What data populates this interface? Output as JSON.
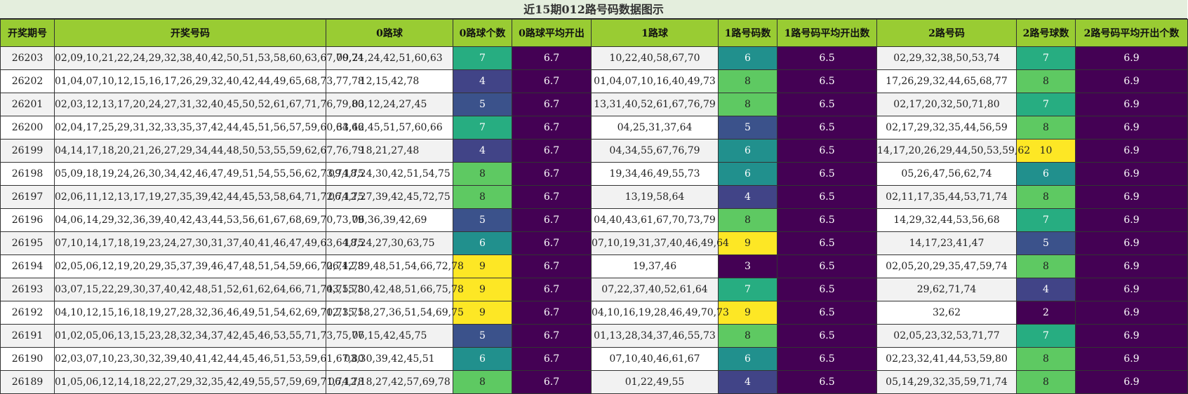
{
  "title": "近15期012路号码数据图示",
  "headers": [
    "开奖期号",
    "开奖号码",
    "0路球",
    "0路球个数",
    "0路球平均开出",
    "1路球",
    "1路号码数",
    "1路号码平均开出数",
    "2路号码",
    "2路号球数",
    "2路号码平均开出个数"
  ],
  "rows": [
    {
      "period": "26203",
      "numbers": "02,09,10,21,22,24,29,32,38,40,42,50,51,53,58,60,63,67,70,74",
      "r0": "09,21,24,42,51,60,63",
      "c0": "7",
      "a0": "6.7",
      "r1": "10,22,40,58,67,70",
      "c1": "6",
      "a1": "6.5",
      "r2": "02,29,32,38,50,53,74",
      "c2": "7",
      "a2": "6.9"
    },
    {
      "period": "26202",
      "numbers": "01,04,07,10,12,15,16,17,26,29,32,40,42,44,49,65,68,73,77,78",
      "r0": "12,15,42,78",
      "c0": "4",
      "a0": "6.7",
      "r1": "01,04,07,10,16,40,49,73",
      "c1": "8",
      "a1": "6.5",
      "r2": "17,26,29,32,44,65,68,77",
      "c2": "8",
      "a2": "6.9"
    },
    {
      "period": "26201",
      "numbers": "02,03,12,13,17,20,24,27,31,32,40,45,50,52,61,67,71,76,79,80",
      "r0": "03,12,24,27,45",
      "c0": "5",
      "a0": "6.7",
      "r1": "13,31,40,52,61,67,76,79",
      "c1": "8",
      "a1": "6.5",
      "r2": "02,17,20,32,50,71,80",
      "c2": "7",
      "a2": "6.9"
    },
    {
      "period": "26200",
      "numbers": "02,04,17,25,29,31,32,33,35,37,42,44,45,51,56,57,59,60,64,66",
      "r0": "33,42,45,51,57,60,66",
      "c0": "7",
      "a0": "6.7",
      "r1": "04,25,31,37,64",
      "c1": "5",
      "a1": "6.5",
      "r2": "02,17,29,32,35,44,56,59",
      "c2": "8",
      "a2": "6.9"
    },
    {
      "period": "26199",
      "numbers": "04,14,17,18,20,21,26,27,29,34,44,48,50,53,55,59,62,67,76,79",
      "r0": "18,21,27,48",
      "c0": "4",
      "a0": "6.7",
      "r1": "04,34,55,67,76,79",
      "c1": "6",
      "a1": "6.5",
      "r2": "14,17,20,26,29,44,50,53,59,62",
      "c2": "10",
      "a2": "6.9"
    },
    {
      "period": "26198",
      "numbers": "05,09,18,19,24,26,30,34,42,46,47,49,51,54,55,56,62,73,74,75",
      "r0": "09,18,24,30,42,51,54,75",
      "c0": "8",
      "a0": "6.7",
      "r1": "19,34,46,49,55,73",
      "c1": "6",
      "a1": "6.5",
      "r2": "05,26,47,56,62,74",
      "c2": "6",
      "a2": "6.9"
    },
    {
      "period": "26197",
      "numbers": "02,06,11,12,13,17,19,27,35,39,42,44,45,53,58,64,71,72,74,75",
      "r0": "06,12,27,39,42,45,72,75",
      "c0": "8",
      "a0": "6.7",
      "r1": "13,19,58,64",
      "c1": "4",
      "a1": "6.5",
      "r2": "02,11,17,35,44,53,71,74",
      "c2": "8",
      "a2": "6.9"
    },
    {
      "period": "26196",
      "numbers": "04,06,14,29,32,36,39,40,42,43,44,53,56,61,67,68,69,70,73,79",
      "r0": "06,36,39,42,69",
      "c0": "5",
      "a0": "6.7",
      "r1": "04,40,43,61,67,70,73,79",
      "c1": "8",
      "a1": "6.5",
      "r2": "14,29,32,44,53,56,68",
      "c2": "7",
      "a2": "6.9"
    },
    {
      "period": "26195",
      "numbers": "07,10,14,17,18,19,23,24,27,30,31,37,40,41,46,47,49,63,64,75",
      "r0": "18,24,27,30,63,75",
      "c0": "6",
      "a0": "6.7",
      "r1": "07,10,19,31,37,40,46,49,64",
      "c1": "9",
      "a1": "6.5",
      "r2": "14,17,23,41,47",
      "c2": "5",
      "a2": "6.9"
    },
    {
      "period": "26194",
      "numbers": "02,05,06,12,19,20,29,35,37,39,46,47,48,51,54,59,66,72,74,78",
      "r0": "06,12,39,48,51,54,66,72,78",
      "c0": "9",
      "a0": "6.7",
      "r1": "19,37,46",
      "c1": "3",
      "a1": "6.5",
      "r2": "02,05,20,29,35,47,59,74",
      "c2": "8",
      "a2": "6.9"
    },
    {
      "period": "26193",
      "numbers": "03,07,15,22,29,30,37,40,42,48,51,52,61,62,64,66,71,74,75,78",
      "r0": "03,15,30,42,48,51,66,75,78",
      "c0": "9",
      "a0": "6.7",
      "r1": "07,22,37,40,52,61,64",
      "c1": "7",
      "a1": "6.5",
      "r2": "29,62,71,74",
      "c2": "4",
      "a2": "6.9"
    },
    {
      "period": "26192",
      "numbers": "04,10,12,15,16,18,19,27,28,32,36,46,49,51,54,62,69,70,73,75",
      "r0": "12,15,18,27,36,51,54,69,75",
      "c0": "9",
      "a0": "6.7",
      "r1": "04,10,16,19,28,46,49,70,73",
      "c1": "9",
      "a1": "6.5",
      "r2": "32,62",
      "c2": "2",
      "a2": "6.9"
    },
    {
      "period": "26191",
      "numbers": "01,02,05,06,13,15,23,28,32,34,37,42,45,46,53,55,71,73,75,77",
      "r0": "06,15,42,45,75",
      "c0": "5",
      "a0": "6.7",
      "r1": "01,13,28,34,37,46,55,73",
      "c1": "8",
      "a1": "6.5",
      "r2": "02,05,23,32,53,71,77",
      "c2": "7",
      "a2": "6.9"
    },
    {
      "period": "26190",
      "numbers": "02,03,07,10,23,30,32,39,40,41,42,44,45,46,51,53,59,61,67,80",
      "r0": "03,30,39,42,45,51",
      "c0": "6",
      "a0": "6.7",
      "r1": "07,10,40,46,61,67",
      "c1": "6",
      "a1": "6.5",
      "r2": "02,23,32,41,44,53,59,80",
      "c2": "8",
      "a2": "6.9"
    },
    {
      "period": "26189",
      "numbers": "01,05,06,12,14,18,22,27,29,32,35,42,49,55,57,59,69,71,74,78",
      "r0": "06,12,18,27,42,57,69,78",
      "c0": "8",
      "a0": "6.7",
      "r1": "01,22,49,55",
      "c1": "4",
      "a1": "6.5",
      "r2": "05,14,29,32,35,59,71,74",
      "c2": "8",
      "a2": "6.9"
    }
  ],
  "colors": {
    "header_bg": "#99cc33",
    "title_bg": "#e4eedd",
    "average_bg": "#440154",
    "heat_scale": {
      "2": "#440154",
      "3": "#440154",
      "4": "#414487",
      "5": "#3b528b",
      "6": "#21908d",
      "7": "#27ad81",
      "8": "#5ec962",
      "9": "#fde725",
      "10": "#fde725"
    },
    "heat_text_light": "#ffffff",
    "heat_text_dark": "#222222"
  }
}
